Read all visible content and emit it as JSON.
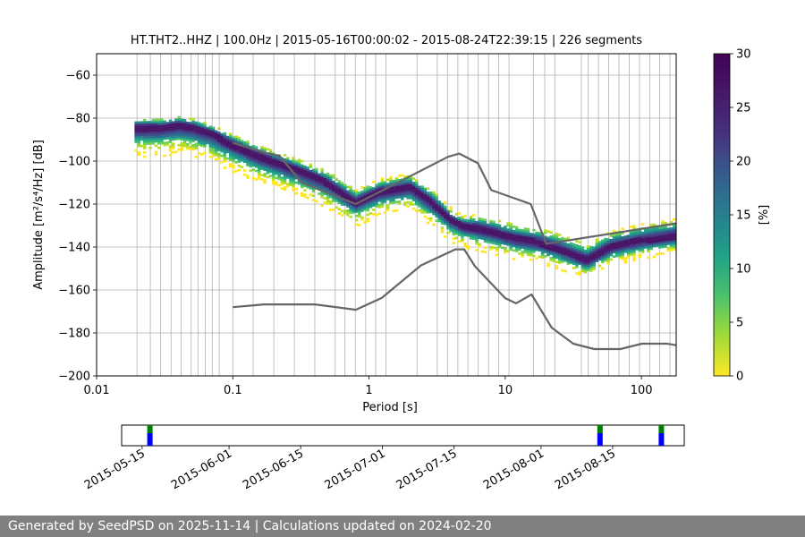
{
  "chart_data": [
    {
      "type": "heatmap",
      "title": "HT.THT2..HHZ | 100.0Hz | 2015-05-16T00:00:02 - 2015-08-24T22:39:15 | 226 segments",
      "xlabel": "Period [s]",
      "ylabel": "Amplitude [m²/s⁴/Hz] [dB]",
      "xscale": "log",
      "xlim": [
        0.01,
        180
      ],
      "ylim": [
        -200,
        -50
      ],
      "xticks": [
        {
          "v": 0.01,
          "label": "0.01"
        },
        {
          "v": 0.1,
          "label": "0.1"
        },
        {
          "v": 1,
          "label": "1"
        },
        {
          "v": 10,
          "label": "10"
        },
        {
          "v": 100,
          "label": "100"
        }
      ],
      "yticks": [
        -60,
        -80,
        -100,
        -120,
        -140,
        -160,
        -180,
        -200
      ],
      "ytick_labels": [
        "−60",
        "−80",
        "−100",
        "−120",
        "−140",
        "−160",
        "−180",
        "−200"
      ],
      "vertical_gridlines_at_periods": [
        0.0198,
        0.0248,
        0.0295,
        0.0352,
        0.0418,
        0.0495,
        0.0555,
        0.0628,
        0.0706,
        0.0795,
        0.1,
        0.141,
        0.2,
        0.283,
        0.4,
        0.565,
        0.666,
        0.793,
        0.946,
        1.12,
        1.33,
        2.25,
        3.17,
        3.77,
        4.49,
        5.32,
        6.34,
        7.54,
        8.96,
        10.66,
        16.1,
        19.5,
        23.1,
        36.2,
        40.7,
        48.4,
        57.5,
        68.4,
        81.4,
        96.8,
        115,
        136,
        162
      ],
      "horizontal_grid": true,
      "colorbar": {
        "label": "[%]",
        "min": 0,
        "max": 30,
        "ticks": [
          0,
          5,
          10,
          15,
          20,
          25,
          30
        ],
        "colormap": "viridis_r"
      },
      "psd_mode_curve": {
        "period": [
          0.02,
          0.025,
          0.03,
          0.04,
          0.05,
          0.07,
          0.1,
          0.15,
          0.2,
          0.3,
          0.5,
          0.8,
          1.2,
          2,
          3,
          4,
          5,
          6,
          8,
          12,
          18,
          25,
          40,
          60,
          100,
          180
        ],
        "amplitude_db": [
          -84,
          -84,
          -84,
          -83,
          -84,
          -87,
          -92,
          -97,
          -100,
          -104,
          -110,
          -119,
          -114,
          -112,
          -120,
          -127,
          -130,
          -131,
          -133,
          -136,
          -138,
          -141,
          -146,
          -140,
          -137,
          -135
        ]
      },
      "psd_spread_db": [
        [
          4,
          14
        ],
        [
          8,
          8
        ]
      ],
      "noise_models": {
        "high_noise": {
          "period": [
            0.1,
            0.17,
            0.22,
            0.32,
            0.8,
            3.8,
            4.6,
            6.3,
            7.9,
            15.4,
            20,
            180
          ],
          "amplitude_db": [
            -91.5,
            -96,
            -97.5,
            -110,
            -120,
            -98,
            -96.5,
            -101,
            -113.5,
            -120,
            -138.5,
            -129
          ]
        },
        "low_noise": {
          "period": [
            0.1,
            0.17,
            0.4,
            0.8,
            1.24,
            2.4,
            4.3,
            5,
            6,
            10,
            12,
            15.6,
            21.9,
            31.6,
            45,
            70,
            101,
            154,
            180
          ],
          "amplitude_db": [
            -168,
            -166.7,
            -166.7,
            -169.2,
            -163.7,
            -148.6,
            -141.1,
            -141.1,
            -149,
            -163.8,
            -166.2,
            -162.1,
            -177.5,
            -185,
            -187.5,
            -187.5,
            -185,
            -185,
            -185.7
          ]
        }
      }
    },
    {
      "type": "timeline",
      "x_range": [
        "2015-05-11",
        "2015-08-29"
      ],
      "tick_labels": [
        "2015-05-15",
        "2015-06-01",
        "2015-06-15",
        "2015-07-01",
        "2015-07-15",
        "2015-08-01",
        "2015-08-15"
      ],
      "tick_dates": [
        "2015-05-15",
        "2015-06-01",
        "2015-06-15",
        "2015-07-01",
        "2015-07-15",
        "2015-08-01",
        "2015-08-15"
      ],
      "segments": [
        {
          "start": "2015-05-16",
          "end": "2015-05-17"
        },
        {
          "start": "2015-08-12",
          "end": "2015-08-12T12:00"
        },
        {
          "start": "2015-08-24",
          "end": "2015-08-25"
        }
      ],
      "colors": {
        "top": "#008000",
        "bottom": "#0000ff"
      }
    }
  ],
  "footer": "Generated by SeedPSD on 2025-11-14 | Calculations updated on 2024-02-20"
}
